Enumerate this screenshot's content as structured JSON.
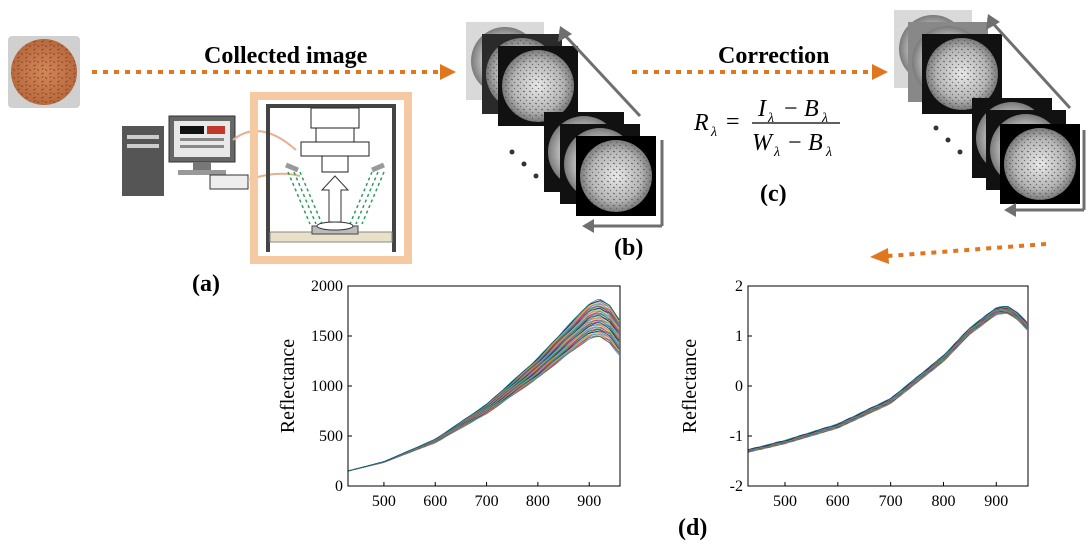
{
  "labels": {
    "collected": "Collected image",
    "correction": "Correction",
    "a": "(a)",
    "b": "(b)",
    "c": "(c)",
    "d": "(d)"
  },
  "formula": {
    "lhs": "R",
    "sub": "λ",
    "numerator": [
      "I",
      "B"
    ],
    "denominator": [
      "W",
      "B"
    ],
    "minus": "−"
  },
  "colors": {
    "arrow": "#e0761e",
    "frame": "#f5c9a2",
    "stack_arrow": "#6f6f6f"
  },
  "chart_data": [
    {
      "type": "line",
      "title": "",
      "xlabel": "",
      "ylabel": "Reflectance",
      "xlim": [
        430,
        960
      ],
      "ylim": [
        0,
        2000
      ],
      "xticks": [
        500,
        600,
        700,
        800,
        900
      ],
      "yticks": [
        0,
        500,
        1000,
        1500,
        2000
      ],
      "series_count": 60,
      "mean_curve": {
        "x": [
          430,
          500,
          600,
          700,
          800,
          850,
          900,
          920,
          940,
          960
        ],
        "y": [
          150,
          240,
          450,
          770,
          1180,
          1420,
          1650,
          1680,
          1620,
          1480
        ]
      }
    },
    {
      "type": "line",
      "title": "",
      "xlabel": "",
      "ylabel": "Reflectance",
      "xlim": [
        430,
        960
      ],
      "ylim": [
        -2,
        2
      ],
      "xticks": [
        500,
        600,
        700,
        800,
        900
      ],
      "yticks": [
        -2,
        -1,
        0,
        1,
        2
      ],
      "series_count": 60,
      "mean_curve": {
        "x": [
          430,
          500,
          600,
          700,
          800,
          850,
          900,
          920,
          940,
          960
        ],
        "y": [
          -1.3,
          -1.12,
          -0.8,
          -0.3,
          0.55,
          1.1,
          1.5,
          1.53,
          1.4,
          1.18
        ]
      }
    }
  ]
}
